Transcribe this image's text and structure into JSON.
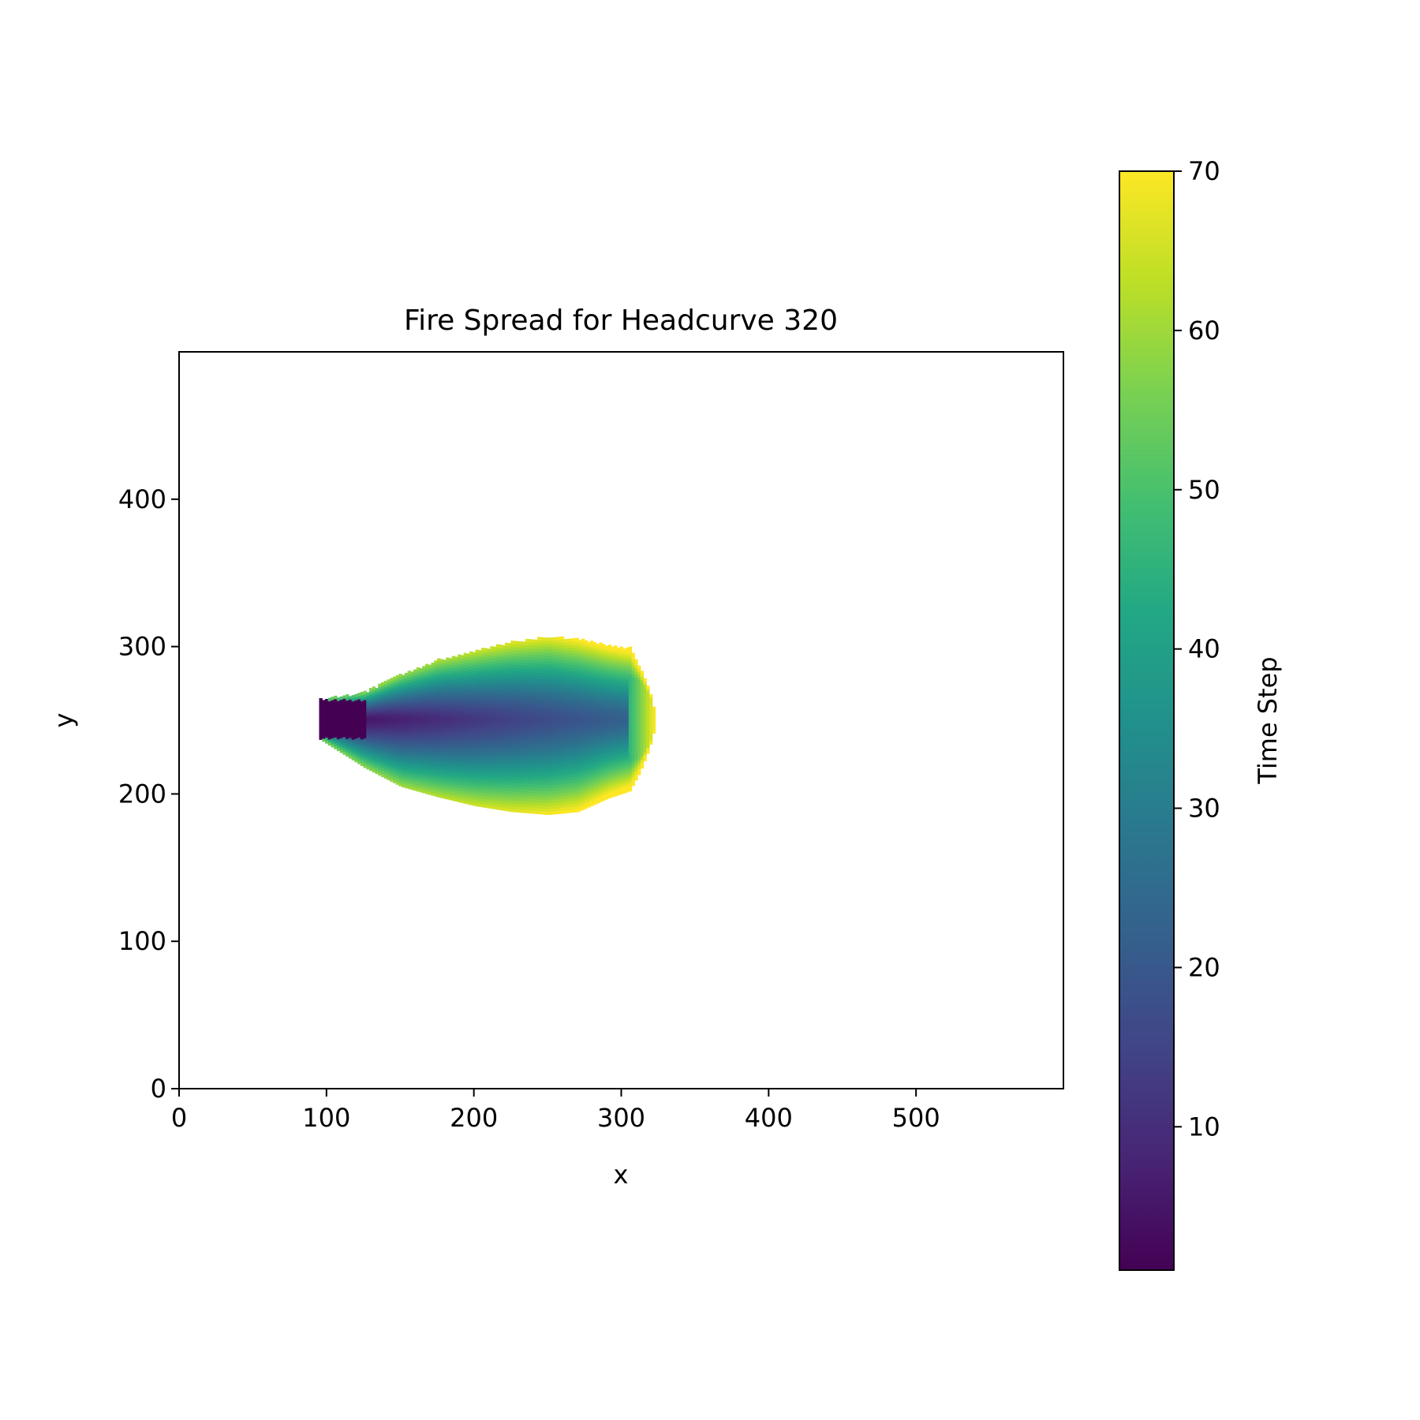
{
  "chart_data": {
    "type": "heatmap",
    "title": "Fire Spread for Headcurve 320",
    "xlabel": "x",
    "ylabel": "y",
    "xlim": [
      0,
      600
    ],
    "ylim": [
      0,
      500
    ],
    "xticks": [
      0,
      100,
      200,
      300,
      400,
      500
    ],
    "yticks": [
      0,
      100,
      200,
      300,
      400
    ],
    "grid": false,
    "colorbar": {
      "label": "Time Step",
      "range": [
        1,
        70
      ],
      "ticks": [
        10,
        20,
        30,
        40,
        50,
        60,
        70
      ],
      "colormap": "viridis"
    },
    "burned_region": {
      "ignition": {
        "x_range": [
          95,
          125
        ],
        "y_range": [
          237,
          263
        ],
        "time_step": 1
      },
      "x_extent": [
        95,
        322
      ],
      "y_extent": [
        185,
        307
      ],
      "upper_boundary": [
        [
          95,
          263
        ],
        [
          125,
          268
        ],
        [
          150,
          280
        ],
        [
          175,
          290
        ],
        [
          200,
          296
        ],
        [
          225,
          302
        ],
        [
          250,
          306
        ],
        [
          270,
          304
        ],
        [
          290,
          300
        ],
        [
          305,
          298
        ],
        [
          312,
          285
        ],
        [
          318,
          270
        ],
        [
          322,
          255
        ]
      ],
      "lower_boundary": [
        [
          322,
          245
        ],
        [
          318,
          230
        ],
        [
          312,
          215
        ],
        [
          305,
          202
        ],
        [
          290,
          197
        ],
        [
          270,
          188
        ],
        [
          250,
          186
        ],
        [
          225,
          188
        ],
        [
          200,
          192
        ],
        [
          175,
          198
        ],
        [
          150,
          205
        ],
        [
          125,
          218
        ],
        [
          95,
          237
        ]
      ],
      "max_time_step": 70
    }
  }
}
